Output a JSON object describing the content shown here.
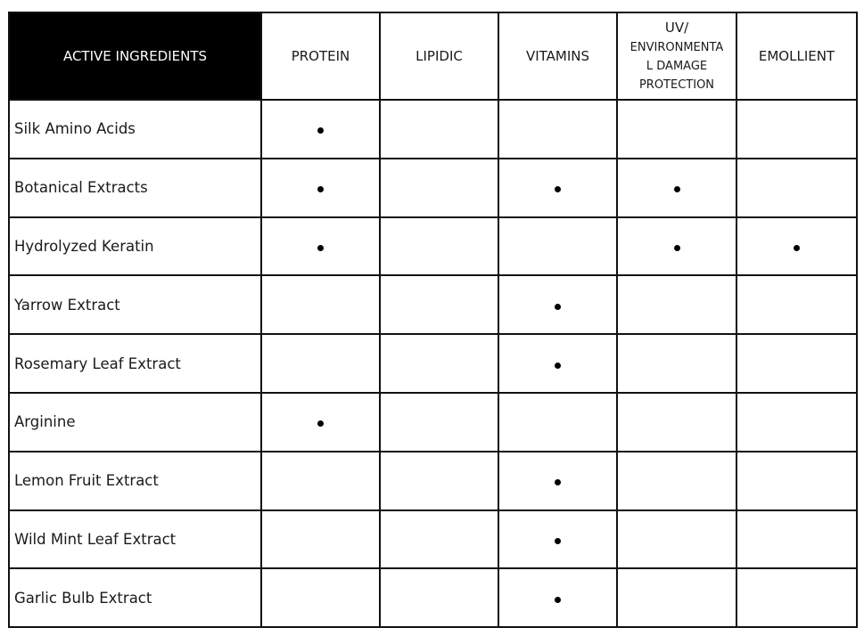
{
  "table": {
    "headers": [
      "ACTIVE INGREDIENTS",
      "PROTEIN",
      "LIPIDIC",
      "VITAMINS",
      "UV/ ENVIRONMENTA L DAMAGE PROTECTION",
      "EMOLLIENT"
    ],
    "header_uv_lines": [
      "UV/",
      "ENVIRONMENTA",
      "L DAMAGE",
      "PROTECTION"
    ],
    "rows": [
      {
        "ingredient": "Silk Amino Acids",
        "marks": [
          true,
          false,
          false,
          false,
          false
        ]
      },
      {
        "ingredient": "Botanical Extracts",
        "marks": [
          true,
          false,
          true,
          true,
          false
        ]
      },
      {
        "ingredient": "Hydrolyzed Keratin",
        "marks": [
          true,
          false,
          false,
          true,
          true
        ]
      },
      {
        "ingredient": "Yarrow Extract",
        "marks": [
          false,
          false,
          true,
          false,
          false
        ]
      },
      {
        "ingredient": "Rosemary Leaf Extract",
        "marks": [
          false,
          false,
          true,
          false,
          false
        ]
      },
      {
        "ingredient": "Arginine",
        "marks": [
          true,
          false,
          false,
          false,
          false
        ]
      },
      {
        "ingredient": "Lemon Fruit Extract",
        "marks": [
          false,
          false,
          true,
          false,
          false
        ]
      },
      {
        "ingredient": "Wild Mint Leaf Extract",
        "marks": [
          false,
          false,
          true,
          false,
          false
        ]
      },
      {
        "ingredient": "Garlic Bulb Extract",
        "marks": [
          false,
          false,
          true,
          false,
          false
        ]
      }
    ],
    "mark_icon": "bullet-dot",
    "header_bg": "#000000"
  }
}
